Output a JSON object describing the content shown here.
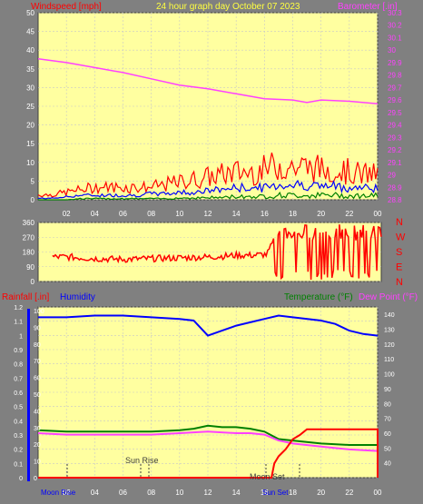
{
  "header": {
    "left": "Windspeed [mph]",
    "center": "24 hour graph day   October 07 2023",
    "right": "Barometer [.in]"
  },
  "colors": {
    "plot_bg": "#ffffa0",
    "frame_bg": "#808080",
    "wind_gust": "#ff0000",
    "wind_avg": "#0000ff",
    "wind_low": "#008000",
    "barometer": "#ff40ff",
    "direction": "#ff0000",
    "rain": "#ff0000",
    "humidity": "#0000ff",
    "temperature": "#008000",
    "dew_point": "#ff40ff",
    "title_yellow": "#ffff40",
    "axis_text": "#ffffff"
  },
  "chart_data": [
    {
      "type": "line",
      "name": "wind-barometer",
      "x_ticks": [
        "02",
        "04",
        "06",
        "08",
        "10",
        "12",
        "14",
        "16",
        "18",
        "20",
        "22",
        "00"
      ],
      "ylabel": "Windspeed [mph]",
      "ylabel_right": "Barometer [.in]",
      "ylim": [
        0,
        50
      ],
      "ylim_right": [
        28.8,
        30.3
      ],
      "y_ticks": [
        0,
        5,
        10,
        15,
        20,
        25,
        30,
        35,
        40,
        45,
        50
      ],
      "y_ticks_right": [
        "28.8",
        "28.9",
        "29",
        "29.1",
        "29.2",
        "29.3",
        "29.4",
        "29.5",
        "29.6",
        "29.7",
        "29.8",
        "29.9",
        "30",
        "30.1",
        "30.2",
        "30.3"
      ],
      "series": [
        {
          "name": "Barometer [.in]",
          "axis": "right",
          "x": [
            0,
            2,
            4,
            6,
            8,
            10,
            12,
            14,
            15,
            16,
            18,
            19,
            20,
            22,
            24
          ],
          "values": [
            29.93,
            29.9,
            29.86,
            29.82,
            29.77,
            29.72,
            29.69,
            29.65,
            29.63,
            29.61,
            29.6,
            29.58,
            29.6,
            29.59,
            29.57
          ]
        }
      ],
      "wind_profile": {
        "hours": [
          0,
          1,
          2,
          3,
          4,
          5,
          6,
          7,
          8,
          9,
          10,
          11,
          12,
          13,
          14,
          15,
          16,
          17,
          18,
          19,
          20,
          21,
          22,
          23,
          24
        ],
        "gust_max": [
          2,
          2,
          3,
          4,
          5,
          5,
          5,
          5,
          5,
          6,
          7,
          8,
          9,
          10,
          11,
          11,
          12,
          14,
          13,
          13,
          12,
          12,
          11,
          10,
          10
        ],
        "avg": [
          0.5,
          0.5,
          1,
          1.5,
          1.5,
          1.5,
          1.5,
          1.5,
          2,
          2,
          2.5,
          2.5,
          3,
          3.5,
          4,
          4,
          4,
          5,
          5,
          5,
          4.5,
          4.5,
          4,
          4,
          4
        ],
        "low": [
          0,
          0,
          0,
          0.5,
          0.5,
          0.5,
          0.5,
          0.5,
          0.5,
          0.5,
          0.8,
          0.8,
          1,
          1,
          1.5,
          1.5,
          1.5,
          2,
          2,
          2,
          2,
          2,
          1.8,
          1.8,
          1.8
        ]
      }
    },
    {
      "type": "line",
      "name": "wind-direction",
      "ylabel": "N W S E N",
      "right_labels": [
        "N",
        "W",
        "S",
        "E",
        "N"
      ],
      "ylim": [
        0,
        360
      ],
      "y_ticks": [
        0,
        90,
        180,
        270,
        360
      ],
      "series": [
        {
          "name": "Direction",
          "x": [
            0,
            2,
            3,
            4,
            6,
            8,
            10,
            12,
            14,
            15,
            16,
            16.5,
            17,
            18,
            20,
            22,
            24
          ],
          "values": [
            150,
            150,
            145,
            140,
            135,
            140,
            145,
            150,
            160,
            160,
            165,
            250,
            320,
            300,
            300,
            290,
            280
          ]
        }
      ]
    },
    {
      "type": "line",
      "name": "rain-humidity-temperature",
      "header_left": "Rainfall [.in]",
      "header_humidity": "Humidity",
      "header_temp": "Temperature (°F)",
      "header_dew": "Dew Point (°F)",
      "ylim_left": [
        0,
        1.2
      ],
      "y_ticks_left": [
        "0",
        "0.1",
        "0.2",
        "0.3",
        "0.4",
        "0.5",
        "0.6",
        "0.7",
        "0.8",
        "0.9",
        "1",
        "1.1",
        "1.2"
      ],
      "humidity_ticks": [
        "0",
        "10",
        "20",
        "30",
        "40",
        "50",
        "60",
        "70",
        "80",
        "90",
        "100"
      ],
      "ylim_right": [
        30,
        145
      ],
      "y_ticks_right": [
        "40",
        "50",
        "60",
        "70",
        "80",
        "90",
        "100",
        "110",
        "120",
        "130",
        "140"
      ],
      "x_ticks": [
        "02",
        "04",
        "06",
        "08",
        "10",
        "12",
        "14",
        "16",
        "18",
        "20",
        "22",
        "00"
      ],
      "annotations": {
        "moon_rise": "Moon Rise",
        "sun_rise": "Sun Rise",
        "moon_set": "Moon Set",
        "sun_set": "Sun Set"
      },
      "series": [
        {
          "name": "Humidity",
          "axis": "humidity",
          "x": [
            0,
            2,
            4,
            6,
            8,
            10,
            11,
            12,
            13,
            14,
            15,
            16,
            17,
            18,
            20,
            21,
            22,
            23,
            24
          ],
          "values": [
            96,
            96,
            97,
            97,
            96,
            95,
            94,
            85,
            88,
            91,
            93,
            95,
            97,
            96,
            94,
            92,
            88,
            86,
            85
          ]
        },
        {
          "name": "Temperature (°F)",
          "axis": "right",
          "x": [
            0,
            2,
            4,
            6,
            8,
            10,
            11,
            12,
            13,
            14,
            15,
            16,
            17,
            18,
            20,
            22,
            24
          ],
          "values": [
            62,
            61,
            61,
            61,
            61,
            62,
            63,
            65,
            64,
            64,
            63,
            61,
            56,
            55,
            53,
            52,
            52
          ]
        },
        {
          "name": "Dew Point (°F)",
          "axis": "right",
          "x": [
            0,
            2,
            4,
            6,
            8,
            10,
            12,
            14,
            15,
            16,
            17,
            18,
            20,
            22,
            24
          ],
          "values": [
            60,
            59,
            59,
            59,
            59,
            60,
            61,
            60,
            60,
            59,
            55,
            53,
            51,
            49,
            48
          ]
        },
        {
          "name": "Rainfall [.in]",
          "axis": "left",
          "x": [
            0,
            16.5,
            16.7,
            17,
            17.5,
            18,
            18.5,
            19,
            24,
            24
          ],
          "values": [
            0,
            0,
            0.1,
            0.15,
            0.2,
            0.27,
            0.3,
            0.34,
            0.34,
            0
          ]
        }
      ]
    }
  ]
}
